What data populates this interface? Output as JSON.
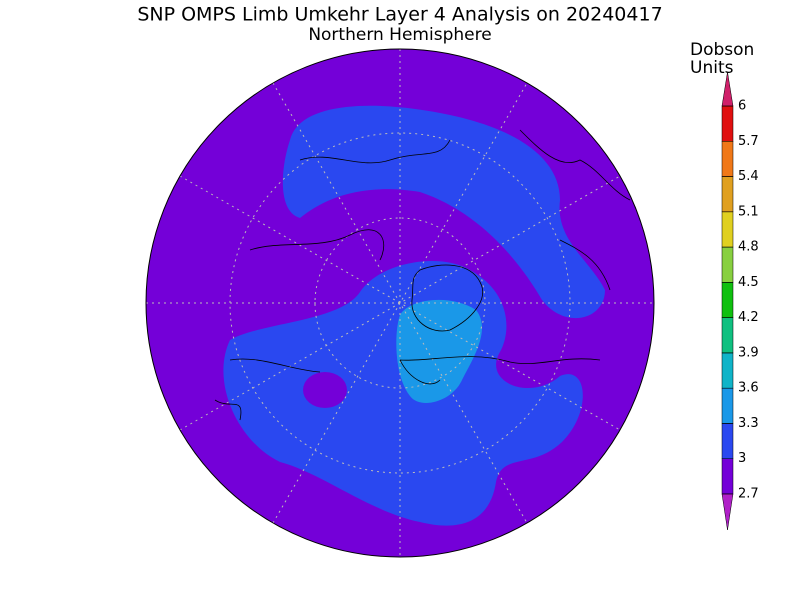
{
  "header": {
    "title": "SNP OMPS Limb Umkehr Layer 4 Analysis on 20240417",
    "subtitle": "Northern Hemisphere"
  },
  "colorbar": {
    "label": [
      "Dobson",
      "Units"
    ],
    "ticks": [
      2.7,
      3,
      3.3,
      3.6,
      3.9,
      4.2,
      4.5,
      4.8,
      5.1,
      5.4,
      5.7,
      6
    ],
    "colors": [
      "#7400d8",
      "#2a48f0",
      "#1a98e8",
      "#10b4c8",
      "#10c080",
      "#10c010",
      "#88d040",
      "#e0d020",
      "#e0a020",
      "#f07818",
      "#e01010"
    ],
    "under_color": "#b020c8",
    "over_color": "#d0206a"
  }
}
